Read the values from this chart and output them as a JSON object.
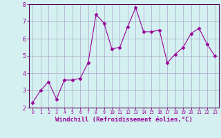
{
  "x": [
    0,
    1,
    2,
    3,
    4,
    5,
    6,
    7,
    8,
    9,
    10,
    11,
    12,
    13,
    14,
    15,
    16,
    17,
    18,
    19,
    20,
    21,
    22,
    23
  ],
  "y": [
    2.3,
    3.0,
    3.5,
    2.5,
    3.6,
    3.6,
    3.7,
    4.6,
    7.4,
    6.9,
    5.4,
    5.5,
    6.7,
    7.8,
    6.4,
    6.4,
    6.5,
    4.6,
    5.1,
    5.5,
    6.3,
    6.6,
    5.7,
    5.0
  ],
  "ylim": [
    2,
    8
  ],
  "yticks": [
    2,
    3,
    4,
    5,
    6,
    7,
    8
  ],
  "xticks": [
    0,
    1,
    2,
    3,
    4,
    5,
    6,
    7,
    8,
    9,
    10,
    11,
    12,
    13,
    14,
    15,
    16,
    17,
    18,
    19,
    20,
    21,
    22,
    23
  ],
  "xlabel": "Windchill (Refroidissement éolien,°C)",
  "line_color": "#990099",
  "marker": "D",
  "marker_size": 2.5,
  "bg_color": "#d4f0f0",
  "grid_color": "#aaaacc",
  "xlabel_color": "#990099",
  "tick_color": "#990099",
  "axis_color": "#550055",
  "xlabel_fontsize": 6.5,
  "xtick_fontsize": 4.8,
  "ytick_fontsize": 6.0
}
